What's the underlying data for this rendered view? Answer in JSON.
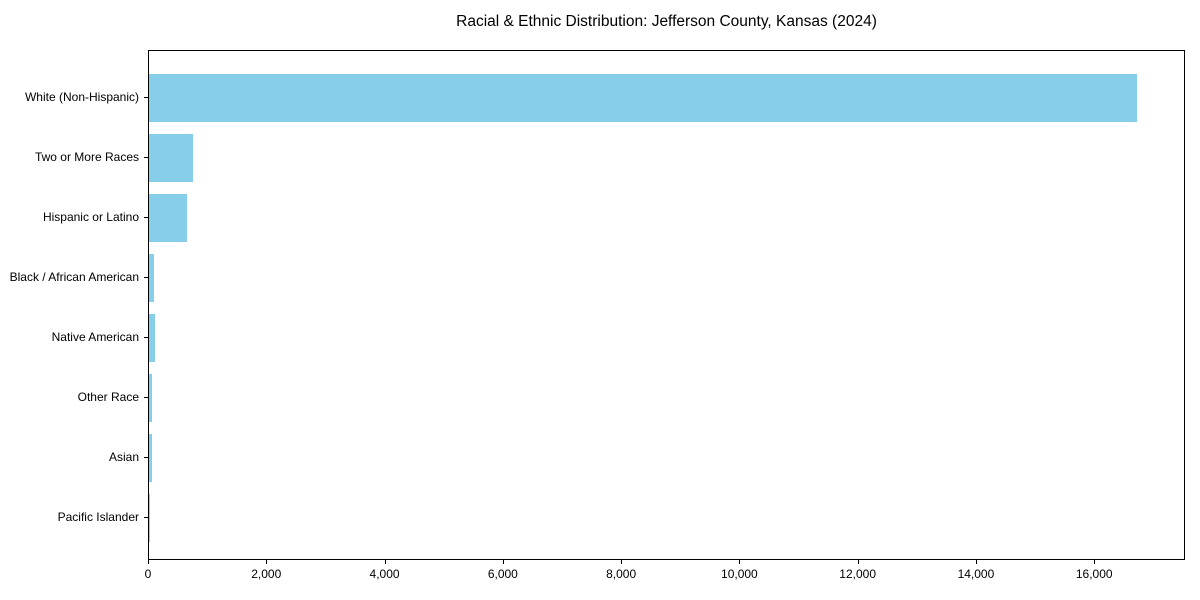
{
  "title": "Racial & Ethnic Distribution: Jefferson County, Kansas (2024)",
  "chart_data": {
    "type": "bar",
    "orientation": "horizontal",
    "title": "Racial & Ethnic Distribution: Jefferson County, Kansas (2024)",
    "xlabel": "",
    "ylabel": "",
    "categories": [
      "White (Non-Hispanic)",
      "Two or More Races",
      "Hispanic or Latino",
      "Black / African American",
      "Native American",
      "Other Race",
      "Asian",
      "Pacific Islander"
    ],
    "values": [
      16700,
      750,
      650,
      90,
      100,
      45,
      50,
      10
    ],
    "xlim": [
      0,
      17535
    ],
    "xticks": [
      0,
      2000,
      4000,
      6000,
      8000,
      10000,
      12000,
      14000,
      16000
    ],
    "xtick_labels": [
      "0",
      "2,000",
      "4,000",
      "6,000",
      "8,000",
      "10,000",
      "12,000",
      "14,000",
      "16,000"
    ],
    "bar_color": "#87CEEB",
    "axis_color": "#000000",
    "grid": false,
    "legend": "none"
  }
}
